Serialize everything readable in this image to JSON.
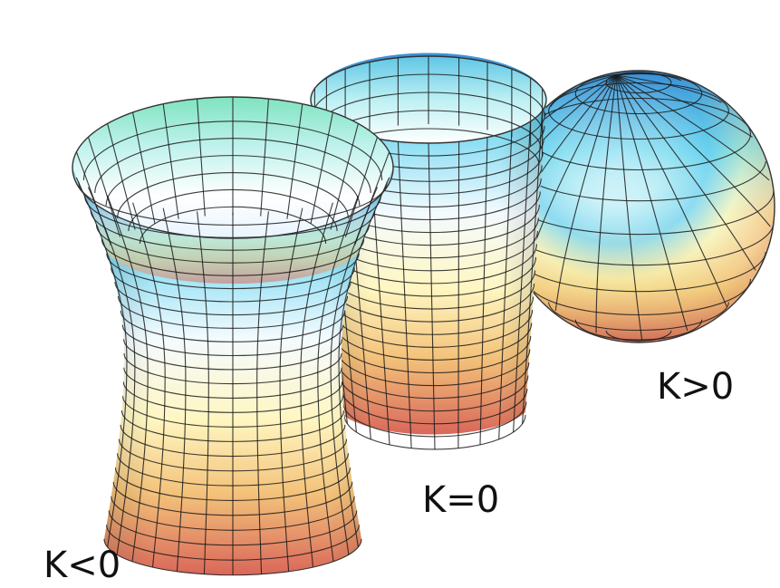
{
  "figure": {
    "labels": {
      "negative": "K<0",
      "zero": "K=0",
      "positive": "K>0"
    },
    "surfaces": [
      {
        "name": "hyperboloid",
        "curvature": "negative"
      },
      {
        "name": "cylinder",
        "curvature": "zero"
      },
      {
        "name": "sphere",
        "curvature": "positive"
      }
    ],
    "colors": {
      "top": "#3a8fd8",
      "upper": "#6fd6f0",
      "middle": "#ffffff",
      "lower": "#f6f09a",
      "bottom": "#d9675a",
      "grid": "#1a1a1a"
    }
  }
}
